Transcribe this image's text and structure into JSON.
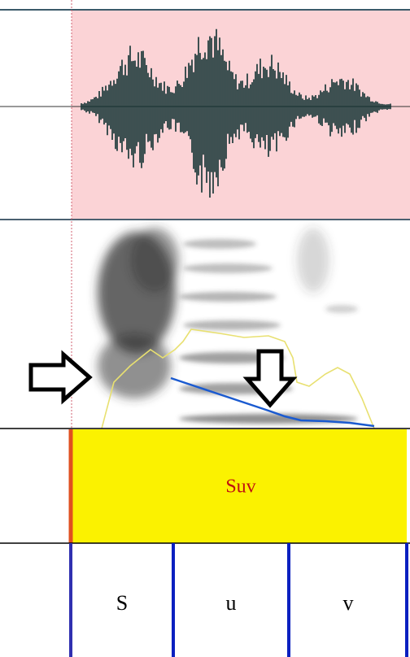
{
  "word_tier": {
    "label": "Suv"
  },
  "phone_tier": {
    "labels": [
      "S",
      "u",
      "v"
    ]
  }
}
